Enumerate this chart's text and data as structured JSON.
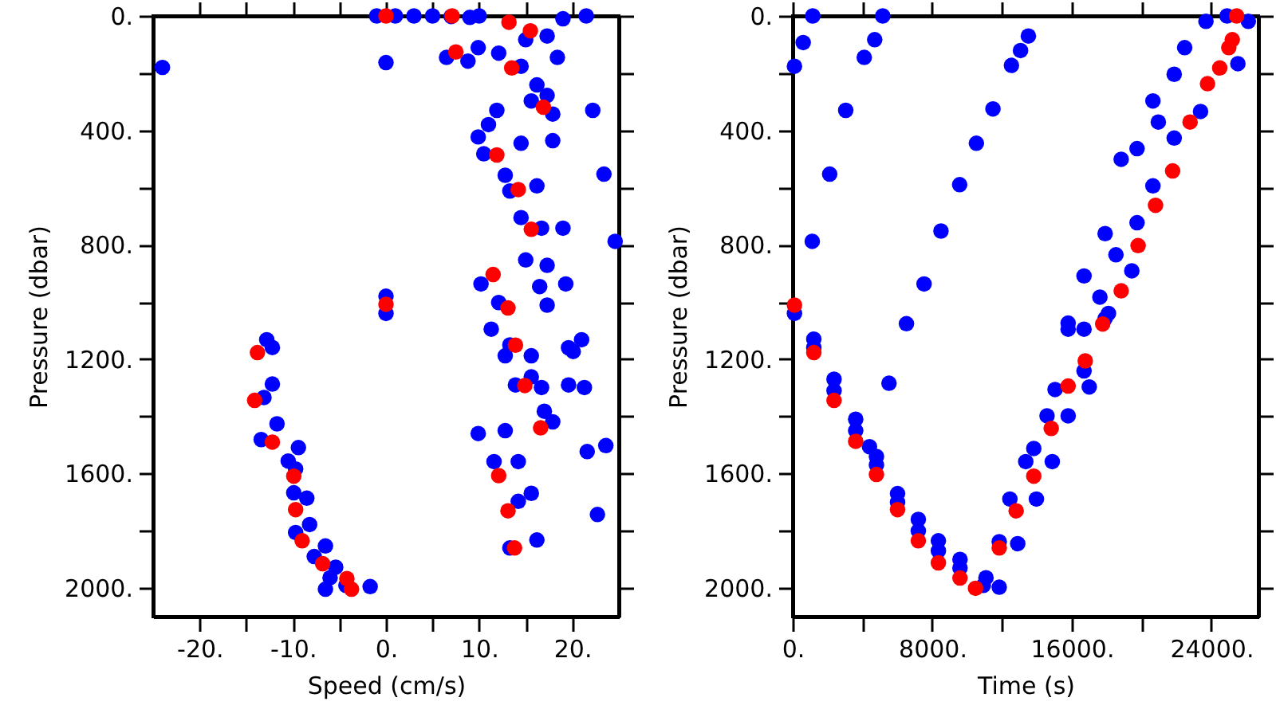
{
  "chart_data": [
    {
      "type": "scatter",
      "xlabel": "Speed (cm/s)",
      "ylabel": "Pressure (dbar)",
      "marker": "circle",
      "xlim": [
        -25,
        25
      ],
      "ylim": [
        2100,
        0
      ],
      "xticks": [
        {
          "value": -20,
          "label": "-20."
        },
        {
          "value": -15,
          "label": null
        },
        {
          "value": -10,
          "label": "-10."
        },
        {
          "value": -5,
          "label": null
        },
        {
          "value": 0,
          "label": "0."
        },
        {
          "value": 5,
          "label": null
        },
        {
          "value": 10,
          "label": "10."
        },
        {
          "value": 15,
          "label": null
        },
        {
          "value": 20,
          "label": "20."
        }
      ],
      "yticks": [
        {
          "value": 0,
          "label": "0."
        },
        {
          "value": 200,
          "label": null
        },
        {
          "value": 400,
          "label": "400."
        },
        {
          "value": 600,
          "label": null
        },
        {
          "value": 800,
          "label": "800."
        },
        {
          "value": 1000,
          "label": null
        },
        {
          "value": 1200,
          "label": "1200."
        },
        {
          "value": 1400,
          "label": null
        },
        {
          "value": 1600,
          "label": "1600."
        },
        {
          "value": 1800,
          "label": null
        },
        {
          "value": 2000,
          "label": "2000."
        }
      ],
      "series": [
        {
          "color": "#0000ff",
          "x": [
            -1,
            1,
            3,
            5,
            7,
            9,
            10,
            19.0,
            21.5,
            -24.0,
            0,
            18.4,
            22.2,
            23.4,
            24.6,
            6.5,
            8.8,
            9.9,
            12.1,
            14.5,
            15.0,
            17.3,
            16.2,
            17.3,
            17.9,
            17.9,
            15.6,
            11.9,
            9.9,
            11.0,
            14.5,
            10.5,
            12.8,
            13.3,
            16.2,
            14.5,
            16.7,
            19.0,
            15.0,
            17.3,
            16.5,
            19.3,
            17.3,
            10.2,
            12.1,
            11.3,
            13.3,
            12.8,
            15.6,
            19.6,
            21.0,
            20.1,
            15.6,
            13.9,
            16.7,
            17.0,
            17.9,
            19.6,
            21.3,
            9.9,
            12.8,
            11.6,
            14.2,
            14.2,
            15.6,
            13.3,
            16.2,
            21.6,
            23.6,
            22.7,
            -12.8,
            -12.2,
            -12.2,
            -13.1,
            -11.7,
            -13.4,
            -9.4,
            -10.5,
            -9.7,
            -9.9,
            -8.5,
            -8.2,
            -9.7,
            -6.5,
            -7.7,
            -5.4,
            -6.0,
            -4.3,
            -1.7,
            -6.5,
            0,
            0
          ],
          "values": [
            0,
            0,
            0,
            0,
            2,
            5,
            0,
            10,
            0,
            180,
            163,
            145,
            330,
            553,
            788,
            145,
            158,
            111,
            130,
            176,
            83,
            70,
            241,
            278,
            343,
            436,
            297,
            330,
            423,
            380,
            445,
            482,
            557,
            612,
            594,
            705,
            742,
            742,
            853,
            872,
            946,
            937,
            1011,
            937,
            1002,
            1095,
            1150,
            1188,
            1188,
            1160,
            1132,
            1173,
            1262,
            1290,
            1299,
            1382,
            1419,
            1290,
            1299,
            1460,
            1450,
            1558,
            1558,
            1697,
            1669,
            1860,
            1832,
            1523,
            1502,
            1743,
            1132,
            1159,
            1287,
            1334,
            1426,
            1481,
            1509,
            1556,
            1584,
            1667,
            1686,
            1778,
            1806,
            1853,
            1890,
            1927,
            1964,
            1991,
            1995,
            2004,
            1040,
            980
          ]
        },
        {
          "color": "#ff0000",
          "x": [
            0,
            7.1,
            13.2,
            15.5,
            7.5,
            13.5,
            16.9,
            11.9,
            14.2,
            15.6,
            11.5,
            13.1,
            0,
            13.9,
            14.9,
            16.6,
            12.1,
            13.1,
            13.8,
            -13.8,
            -14.1,
            -12.2,
            -9.9,
            -9.7,
            -9.0,
            -6.8,
            -4.2,
            -3.7
          ],
          "values": [
            0,
            0,
            22,
            52,
            126,
            182,
            319,
            486,
            607,
            746,
            904,
            1021,
            1008,
            1151,
            1292,
            1440,
            1607,
            1730,
            1860,
            1177,
            1344,
            1490,
            1609,
            1726,
            1835,
            1915,
            1967,
            2004
          ]
        }
      ]
    },
    {
      "type": "scatter",
      "xlabel": "Time (s)",
      "ylabel": "Pressure (dbar)",
      "marker": "circle",
      "xlim": [
        0,
        26700
      ],
      "ylim": [
        2100,
        0
      ],
      "xticks": [
        {
          "value": 0,
          "label": "0."
        },
        {
          "value": 4000,
          "label": null
        },
        {
          "value": 8000,
          "label": "8000."
        },
        {
          "value": 12000,
          "label": null
        },
        {
          "value": 16000,
          "label": "16000."
        },
        {
          "value": 20000,
          "label": null
        },
        {
          "value": 24000,
          "label": "24000."
        }
      ],
      "yticks": [
        {
          "value": 0,
          "label": "0."
        },
        {
          "value": 200,
          "label": null
        },
        {
          "value": 400,
          "label": "400."
        },
        {
          "value": 600,
          "label": null
        },
        {
          "value": 800,
          "label": "800."
        },
        {
          "value": 1000,
          "label": null
        },
        {
          "value": 1200,
          "label": "1200."
        },
        {
          "value": 1400,
          "label": null
        },
        {
          "value": 1600,
          "label": "1600."
        },
        {
          "value": 1800,
          "label": null
        },
        {
          "value": 2000,
          "label": "2000."
        }
      ],
      "series": [
        {
          "color": "#0000ff",
          "x": [
            100,
            100,
            600,
            1150,
            3040,
            2120,
            1120,
            4100,
            4700,
            5160,
            5520,
            6520,
            7530,
            8500,
            9570,
            10530,
            11480,
            12540,
            13060,
            13510,
            1210,
            1210,
            2370,
            2370,
            3610,
            3610,
            4400,
            4800,
            4800,
            6010,
            6010,
            7200,
            7200,
            8350,
            8350,
            9590,
            9590,
            10930,
            11840,
            11080,
            11840,
            12900,
            12450,
            13970,
            13360,
            14880,
            13820,
            14580,
            15790,
            15040,
            16700,
            17000,
            15790,
            18100,
            16700,
            15790,
            17910,
            18830,
            19740,
            20650,
            20960,
            21870,
            22470,
            23690,
            24900,
            26120,
            25520,
            23380,
            21870,
            20650,
            19740,
            18530,
            17610,
            19440,
            16700,
            17910
          ],
          "values": [
            176,
            1040,
            93,
            0,
            330,
            553,
            788,
            145,
            83,
            0,
            1284,
            1076,
            937,
            752,
            590,
            445,
            325,
            173,
            121,
            70,
            1130,
            1160,
            1270,
            1310,
            1410,
            1450,
            1506,
            1540,
            1570,
            1670,
            1700,
            1760,
            1800,
            1835,
            1870,
            1900,
            1930,
            1991,
            1997,
            1964,
            1838,
            1845,
            1689,
            1689,
            1558,
            1558,
            1512,
            1398,
            1398,
            1306,
            1241,
            1297,
            1074,
            1040,
            909,
            1095,
            761,
            501,
            464,
            297,
            371,
            204,
            111,
            19,
            0,
            19,
            167,
            334,
            427,
            594,
            723,
            835,
            983,
            891,
            1095,
            1058
          ]
        },
        {
          "color": "#ff0000",
          "x": [
            25450,
            25200,
            25000,
            24480,
            23780,
            22780,
            21780,
            20800,
            19800,
            18830,
            17770,
            16770,
            100,
            15790,
            14820,
            13820,
            12810,
            11840,
            10480,
            9590,
            8350,
            7200,
            6010,
            4800,
            3610,
            2370,
            1210
          ],
          "values": [
            0,
            83,
            111,
            182,
            237,
            371,
            542,
            662,
            803,
            961,
            1077,
            1206,
            1011,
            1294,
            1442,
            1609,
            1730,
            1860,
            2001,
            1965,
            1912,
            1835,
            1726,
            1603,
            1487,
            1344,
            1177
          ]
        }
      ]
    }
  ]
}
